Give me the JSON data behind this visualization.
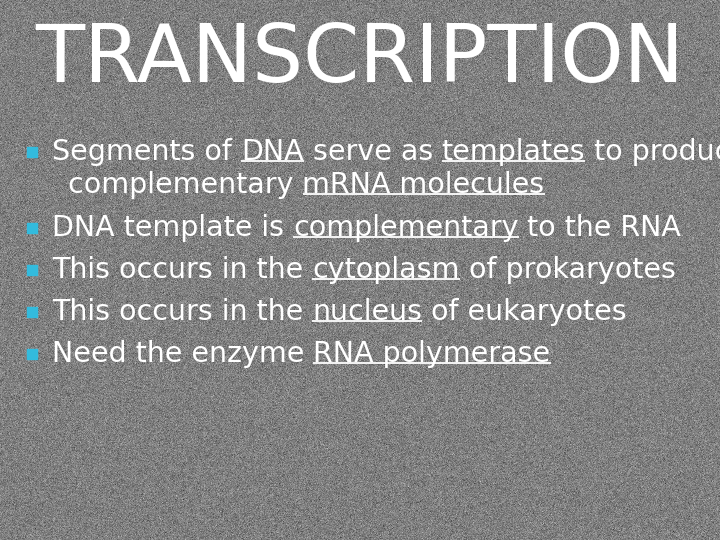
{
  "title": "TRANSCRIPTION",
  "title_color": "#ffffff",
  "title_fontsize": 58,
  "background_color": "#787878",
  "bullet_color": "#33bbdd",
  "text_color": "#ffffff",
  "text_fontsize": 20.5,
  "bullet_parts_line1": [
    {
      "text": "Segments of ",
      "underline": false
    },
    {
      "text": "DNA",
      "underline": true
    },
    {
      "text": " serve as ",
      "underline": false
    },
    {
      "text": "templates",
      "underline": true
    },
    {
      "text": " to produce",
      "underline": false
    }
  ],
  "bullet_parts_line2": [
    {
      "text": "complementary ",
      "underline": false
    },
    {
      "text": "mRNA molecules",
      "underline": true
    }
  ],
  "bullet2": [
    {
      "text": "DNA template is ",
      "underline": false
    },
    {
      "text": "complementary",
      "underline": true
    },
    {
      "text": " to the RNA",
      "underline": false
    }
  ],
  "bullet3": [
    {
      "text": "This occurs in the ",
      "underline": false
    },
    {
      "text": "cytoplasm",
      "underline": true
    },
    {
      "text": " of prokaryotes",
      "underline": false
    }
  ],
  "bullet4": [
    {
      "text": "This occurs in the ",
      "underline": false
    },
    {
      "text": "nucleus",
      "underline": true
    },
    {
      "text": " of eukaryotes",
      "underline": false
    }
  ],
  "bullet5": [
    {
      "text": "Need the enzyme ",
      "underline": false
    },
    {
      "text": "RNA polymerase",
      "underline": true
    }
  ]
}
